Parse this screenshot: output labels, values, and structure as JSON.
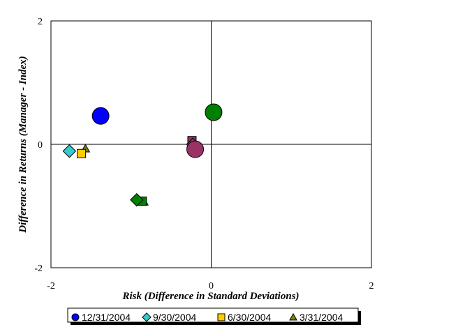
{
  "chart_data": {
    "type": "scatter",
    "title": "",
    "xlabel": "Risk (Difference in Standard Deviations)",
    "ylabel": "Difference in Returns (Manager - Index)",
    "xlim": [
      -2,
      2
    ],
    "ylim": [
      -2,
      2
    ],
    "x_ticks": [
      "-2",
      "0",
      "2"
    ],
    "y_ticks": [
      "2",
      "0",
      "-2"
    ],
    "grid": false,
    "legend_position": "bottom",
    "series": [
      {
        "name": "12/31/2004",
        "marker": "circle",
        "points": [
          {
            "x": -1.38,
            "y": 0.46,
            "color": "#0000ff"
          },
          {
            "x": 0.03,
            "y": 0.52,
            "color": "#008000"
          },
          {
            "x": -0.2,
            "y": -0.08,
            "color": "#993366"
          }
        ]
      },
      {
        "name": "9/30/2004",
        "marker": "diamond",
        "points": [
          {
            "x": -1.77,
            "y": -0.11,
            "color": "#33cccc"
          },
          {
            "x": -0.93,
            "y": -0.9,
            "color": "#008000"
          },
          {
            "x": -0.23,
            "y": 0.0,
            "color": "#993366"
          }
        ]
      },
      {
        "name": "6/30/2004",
        "marker": "square",
        "points": [
          {
            "x": -1.62,
            "y": -0.15,
            "color": "#ffcc00"
          },
          {
            "x": -0.86,
            "y": -0.92,
            "color": "#008000"
          },
          {
            "x": -0.24,
            "y": 0.06,
            "color": "#993366"
          }
        ]
      },
      {
        "name": "3/31/2004",
        "marker": "triangle",
        "points": [
          {
            "x": -1.57,
            "y": -0.07,
            "color": "#808000"
          },
          {
            "x": -0.84,
            "y": -0.93,
            "color": "#008000"
          },
          {
            "x": -0.23,
            "y": -0.08,
            "color": "#993366"
          }
        ]
      }
    ],
    "legend": [
      {
        "label": "12/31/2004",
        "marker": "circle",
        "color": "#0000ff"
      },
      {
        "label": "9/30/2004",
        "marker": "diamond",
        "color": "#33cccc"
      },
      {
        "label": "6/30/2004",
        "marker": "square",
        "color": "#ffcc00"
      },
      {
        "label": "3/31/2004",
        "marker": "triangle",
        "color": "#808000"
      }
    ]
  }
}
